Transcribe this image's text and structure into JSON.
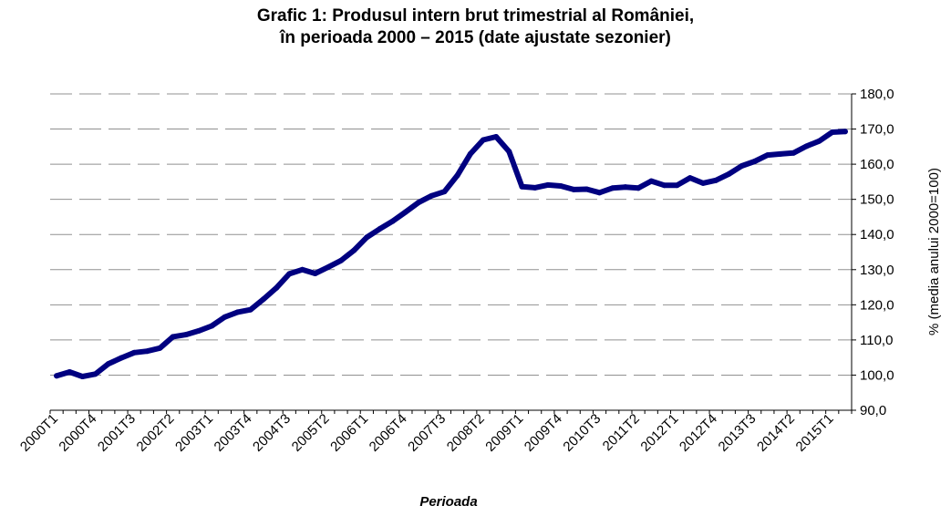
{
  "chart_data": {
    "type": "line",
    "title": "Grafic 1: Produsul intern brut trimestrial al României,",
    "subtitle": "în perioada 2000 – 2015 (date ajustate sezonier)",
    "xlabel": "Perioada",
    "ylabel": "% (media anului 2000=100)",
    "ylim": [
      90,
      180
    ],
    "y_axis_side": "right",
    "y_ticks": [
      "90,0",
      "100,0",
      "110,0",
      "120,0",
      "130,0",
      "140,0",
      "150,0",
      "160,0",
      "170,0",
      "180,0"
    ],
    "x_tick_labels": [
      "2000T1",
      "2000T4",
      "2001T3",
      "2002T2",
      "2003T1",
      "2003T4",
      "2004T3",
      "2005T2",
      "2006T1",
      "2006T4",
      "2007T3",
      "2008T2",
      "2009T1",
      "2009T4",
      "2010T3",
      "2011T2",
      "2012T1",
      "2012T4",
      "2013T3",
      "2014T2",
      "2015T1"
    ],
    "grid": true,
    "legend": "none",
    "line_color": "#000080",
    "categories": [
      "2000T1",
      "2000T2",
      "2000T3",
      "2000T4",
      "2001T1",
      "2001T2",
      "2001T3",
      "2001T4",
      "2002T1",
      "2002T2",
      "2002T3",
      "2002T4",
      "2003T1",
      "2003T2",
      "2003T3",
      "2003T4",
      "2004T1",
      "2004T2",
      "2004T3",
      "2004T4",
      "2005T1",
      "2005T2",
      "2005T3",
      "2005T4",
      "2006T1",
      "2006T2",
      "2006T3",
      "2006T4",
      "2007T1",
      "2007T2",
      "2007T3",
      "2007T4",
      "2008T1",
      "2008T2",
      "2008T3",
      "2008T4",
      "2009T1",
      "2009T2",
      "2009T3",
      "2009T4",
      "2010T1",
      "2010T2",
      "2010T3",
      "2010T4",
      "2011T1",
      "2011T2",
      "2011T3",
      "2011T4",
      "2012T1",
      "2012T2",
      "2012T3",
      "2012T4",
      "2013T1",
      "2013T2",
      "2013T3",
      "2013T4",
      "2014T1",
      "2014T2",
      "2014T3",
      "2014T4",
      "2015T1",
      "2015T2"
    ],
    "series": [
      {
        "values": [
          99.8,
          100.9,
          99.6,
          100.3,
          103.2,
          104.9,
          106.4,
          106.8,
          107.7,
          110.9,
          111.5,
          112.6,
          114.0,
          116.5,
          117.9,
          118.6,
          121.6,
          124.8,
          128.8,
          130.0,
          128.9,
          130.7,
          132.6,
          135.5,
          139.2,
          141.6,
          143.8,
          146.4,
          149.1,
          151.0,
          152.2,
          156.8,
          162.9,
          166.9,
          167.8,
          163.6,
          153.6,
          153.3,
          154.1,
          153.8,
          152.8,
          152.9,
          151.9,
          153.2,
          153.5,
          153.2,
          155.2,
          154.0,
          154.0,
          156.1,
          154.6,
          155.4,
          157.2,
          159.5,
          160.8,
          162.6,
          162.9,
          163.2,
          165.1,
          166.6,
          169.1,
          169.3
        ]
      }
    ]
  }
}
